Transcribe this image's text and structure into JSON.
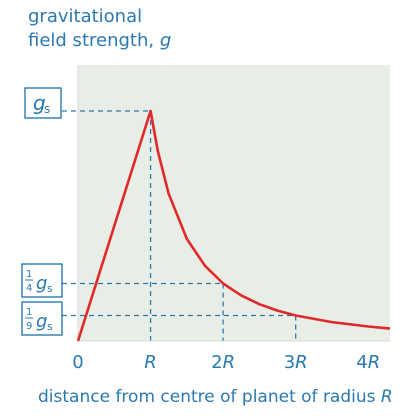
{
  "colors": {
    "accent": "#2a7ab0",
    "curve": "#e0292b",
    "plot_background": "#e8ede6",
    "dashed_lines": "#2a7ab0"
  },
  "chart_data": {
    "type": "line",
    "ylabel_line1": "gravitational",
    "ylabel_line2_prefix": "field strength, ",
    "ylabel_var": "g",
    "xlabel_prefix": "distance from centre of planet of radius ",
    "xlabel_var": "R",
    "x_tick_labels": [
      "0",
      "R",
      "2R",
      "3R",
      "4R"
    ],
    "x_ticks": [
      0,
      1,
      2,
      3,
      4
    ],
    "y_tick_labels": {
      "gs": {
        "numerator": "",
        "denominator": "",
        "symbol": "g",
        "subscript": "s"
      },
      "quarter": {
        "numerator": "1",
        "denominator": "4",
        "symbol": "g",
        "subscript": "s"
      },
      "ninth": {
        "numerator": "1",
        "denominator": "9",
        "symbol": "g",
        "subscript": "s"
      }
    },
    "xlim": [
      0,
      4.3
    ],
    "ylim": [
      0,
      1.2
    ],
    "series": [
      {
        "x": [
          0,
          1,
          1.1,
          1.25,
          1.5,
          1.75,
          2,
          2.25,
          2.5,
          2.75,
          3,
          3.5,
          4,
          4.3
        ],
        "y": [
          0,
          1,
          0.826,
          0.64,
          0.444,
          0.327,
          0.25,
          0.198,
          0.16,
          0.132,
          0.111,
          0.082,
          0.063,
          0.054
        ]
      }
    ],
    "reference_lines": [
      {
        "y": 1,
        "x_end": 1
      },
      {
        "y": 0.25,
        "x_end": 2
      },
      {
        "y": 0.111,
        "x_end": 3
      }
    ],
    "grid": false
  }
}
